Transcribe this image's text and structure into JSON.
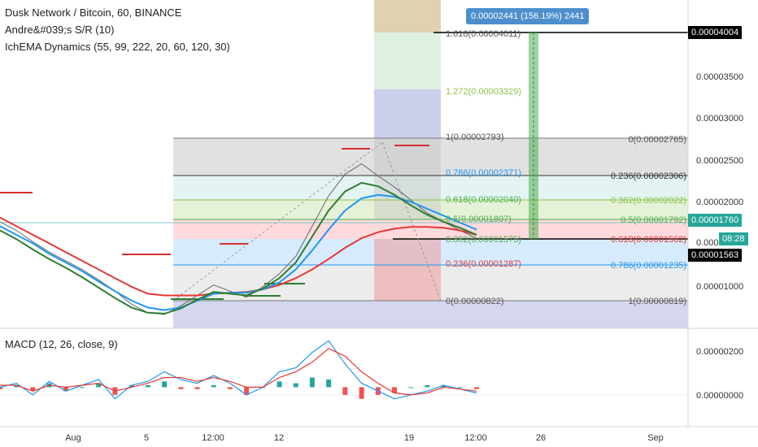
{
  "header": {
    "symbol_line": "Dusk Network / Bitcoin, 60, BINANCE",
    "indicator_1": "Andre&#039;s S/R (10)",
    "indicator_2": "IchEMA Dynamics (55, 99, 222, 20, 60, 120, 30)",
    "macd_title": "MACD (12, 26, close, 9)"
  },
  "measure_label": "0.00002441 (156.19%) 2441",
  "price_axis": {
    "ticks": [
      "0.00003500",
      "0.00003000",
      "0.00002500",
      "0.00002000",
      "0.00001000"
    ],
    "tick_partial": "0.000",
    "badge_top": "0.00004004",
    "badge_current": "0.00001760",
    "badge_time": "08:28",
    "badge_low": "0.00001563",
    "colors": {
      "dark": "#000000",
      "current": "#26a69a",
      "time": "#26a69a"
    }
  },
  "macd_axis": {
    "ticks": [
      "0.00000200",
      "0.00000000"
    ]
  },
  "time_axis": {
    "ticks": [
      "Aug",
      "5",
      "12:00",
      "12",
      "19",
      "12:00",
      "26",
      "Sep"
    ]
  },
  "fib_left": [
    {
      "label": "1.618(0.00004011)",
      "color": "#555555"
    },
    {
      "label": "1.272(0.00003329)",
      "color": "#8bc34a"
    },
    {
      "label": "1(0.00002793)",
      "color": "#555555"
    },
    {
      "label": "0.786(0.00002371)",
      "color": "#2196f3"
    },
    {
      "label": "0.618(0.00002040)",
      "color": "#4caf50"
    },
    {
      "label": "0.5(0.00001807)",
      "color": "#4caf50"
    },
    {
      "label": "0.382(0.00001575)",
      "color": "#4caf50"
    },
    {
      "label": "0.236(0.00001287)",
      "color": "#e53935"
    },
    {
      "label": "0(0.00000822)",
      "color": "#555555"
    }
  ],
  "fib_right": [
    {
      "label": "0(0.00002765)",
      "color": "#555555"
    },
    {
      "label": "0.236(0.00002306)",
      "color": "#333333"
    },
    {
      "label": "0.382(0.00002022)",
      "color": "#8bc34a"
    },
    {
      "label": "0.5(0.00001792)",
      "color": "#4caf50"
    },
    {
      "label": "0.618(0.00001562)",
      "color": "#e53935"
    },
    {
      "label": "0.786(0.00001235)",
      "color": "#2196f3"
    },
    {
      "label": "1(0.00000819)",
      "color": "#555555"
    }
  ],
  "chart_data": {
    "type": "line",
    "price_series_close": [
      1.95e-05,
      1.85e-05,
      1.72e-05,
      1.6e-05,
      1.5e-05,
      1.4e-05,
      1.28e-05,
      1.15e-05,
      1e-05,
      9e-06,
      8.8e-06,
      9.8e-06,
      1.1e-05,
      1.22e-05,
      1.15e-05,
      1.08e-05,
      1.2e-05,
      1.35e-05,
      1.55e-05,
      1.9e-05,
      2.25e-05,
      2.5e-05,
      2.62e-05,
      2.48e-05,
      2.35e-05,
      2.2e-05,
      2.05e-05,
      1.95e-05,
      1.85e-05,
      1.76e-05
    ],
    "ema_series": [
      {
        "name": "EMA red",
        "color": "#e53935",
        "values": [
          2e-05,
          1.9e-05,
          1.8e-05,
          1.7e-05,
          1.6e-05,
          1.5e-05,
          1.4e-05,
          1.3e-05,
          1.2e-05,
          1.12e-05,
          1.1e-05,
          1.1e-05,
          1.1e-05,
          1.12e-05,
          1.13e-05,
          1.14e-05,
          1.17e-05,
          1.22e-05,
          1.3e-05,
          1.4e-05,
          1.52e-05,
          1.65e-05,
          1.76e-05,
          1.83e-05,
          1.87e-05,
          1.89e-05,
          1.89e-05,
          1.88e-05,
          1.85e-05,
          1.8e-05
        ]
      },
      {
        "name": "EMA blue",
        "color": "#2196f3",
        "values": [
          1.9e-05,
          1.8e-05,
          1.7e-05,
          1.58e-05,
          1.48e-05,
          1.38e-05,
          1.26e-05,
          1.15e-05,
          1.04e-05,
          9.6e-06,
          9.3e-06,
          9.6e-06,
          1.04e-05,
          1.12e-05,
          1.13e-05,
          1.13e-05,
          1.17e-05,
          1.25e-05,
          1.4e-05,
          1.62e-05,
          1.86e-05,
          2.08e-05,
          2.22e-05,
          2.26e-05,
          2.24e-05,
          2.18e-05,
          2.1e-05,
          2.02e-05,
          1.94e-05,
          1.86e-05
        ]
      },
      {
        "name": "EMA green",
        "color": "#2e7d32",
        "values": [
          1.85e-05,
          1.75e-05,
          1.63e-05,
          1.52e-05,
          1.42e-05,
          1.31e-05,
          1.19e-05,
          1.07e-05,
          9.6e-06,
          9e-06,
          8.9e-06,
          9.5e-06,
          1.05e-05,
          1.14e-05,
          1.12e-05,
          1.1e-05,
          1.18e-05,
          1.3e-05,
          1.48e-05,
          1.78e-05,
          2.08e-05,
          2.3e-05,
          2.4e-05,
          2.36e-05,
          2.26e-05,
          2.14e-05,
          2.03e-05,
          1.95e-05,
          1.88e-05,
          1.8e-05
        ]
      }
    ],
    "macd": {
      "macd": [
        0.0,
        2e-08,
        -4e-08,
        3e-08,
        -2e-08,
        1e-08,
        4e-08,
        -6e-08,
        1e-08,
        3e-08,
        8e-08,
        4e-08,
        2e-08,
        6e-08,
        2e-08,
        -4e-08,
        0.0,
        8e-08,
        1e-07,
        1.8e-07,
        2.4e-07,
        1.2e-07,
        2e-08,
        -2e-08,
        -6e-08,
        -4e-08,
        -2e-08,
        1e-08,
        -1e-08,
        -3e-08
      ],
      "signal": [
        1e-08,
        1e-08,
        -2e-08,
        1e-08,
        0.0,
        1e-08,
        2e-08,
        -2e-08,
        0.0,
        2e-08,
        5e-08,
        5e-08,
        3e-08,
        5e-08,
        3e-08,
        0.0,
        0.0,
        5e-08,
        8e-08,
        1.3e-07,
        2e-07,
        1.6e-07,
        8e-08,
        2e-08,
        -3e-08,
        -4e-08,
        -3e-08,
        0.0,
        -1e-08,
        -2e-08
      ]
    },
    "ylim": [
      7.2e-06,
      4.51e-05
    ],
    "macd_ylim": [
      -2e-07,
      3e-07
    ]
  }
}
